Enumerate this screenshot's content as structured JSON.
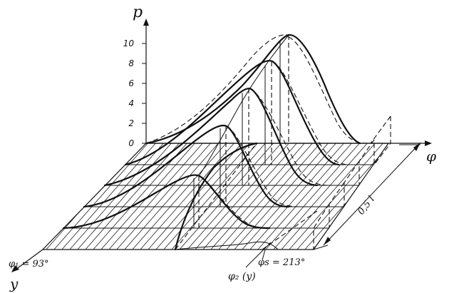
{
  "axes": {
    "vertical_label": "p",
    "horizontal_label": "φ",
    "depth_label": "y",
    "vertical_ticks": [
      "0",
      "2",
      "4",
      "6",
      "8",
      "10"
    ]
  },
  "annotations": {
    "phi_1": "φ₁ = 93°",
    "phi_s": "φs = 213°",
    "phi_2": "φ₂ (y)",
    "width": "0,5 l"
  }
}
